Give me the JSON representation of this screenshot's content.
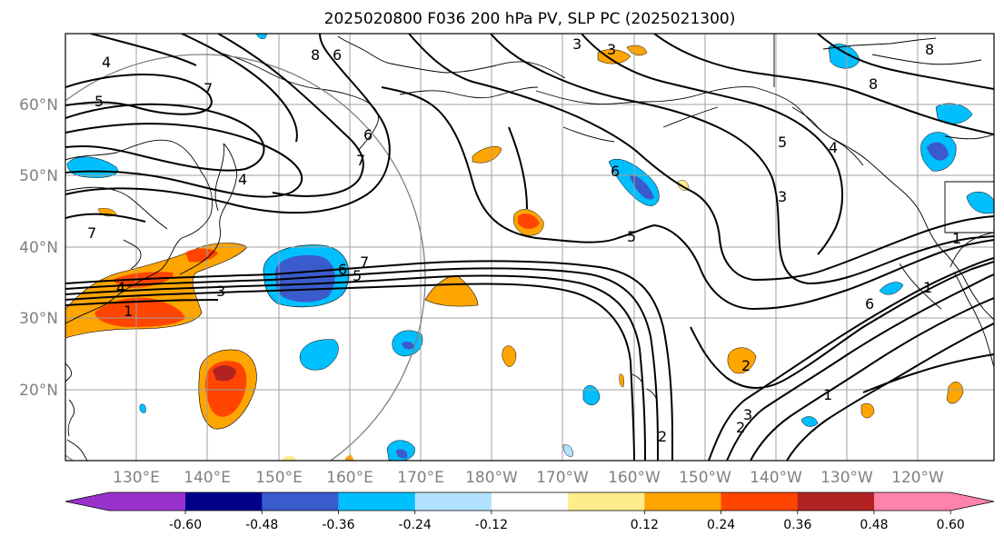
{
  "title": "2025020800 F036 200 hPa PV, SLP PC (2025021300)",
  "map": {
    "lon_labels": [
      "130°E",
      "140°E",
      "150°E",
      "160°E",
      "170°E",
      "180°W",
      "170°W",
      "160°W",
      "150°W",
      "140°W",
      "130°W",
      "120°W"
    ],
    "lat_labels": [
      "60°N",
      "50°N",
      "40°N",
      "30°N",
      "20°N"
    ],
    "colors": {
      "land_border": "#000000",
      "grid": "#a0a0a0",
      "circle": "#808080",
      "contour": "#000000"
    }
  },
  "colorbar": {
    "colors": [
      "#9932cc",
      "#00008b",
      "#3a5bcc",
      "#00bfff",
      "#b0e2ff",
      "#ffffff",
      "#ffec8b",
      "#ffa500",
      "#ff4500",
      "#b22222",
      "#ff82ab"
    ],
    "tick_labels": [
      "-0.60",
      "-0.48",
      "-0.36",
      "-0.24",
      "-0.12",
      "0.12",
      "0.24",
      "0.36",
      "0.48",
      "0.60"
    ]
  },
  "contour_labels": [
    {
      "text": "4"
    },
    {
      "text": "5"
    },
    {
      "text": "7"
    },
    {
      "text": "8"
    },
    {
      "text": "6"
    },
    {
      "text": "3"
    },
    {
      "text": "3"
    },
    {
      "text": "8"
    },
    {
      "text": "5"
    },
    {
      "text": "8"
    },
    {
      "text": "5"
    },
    {
      "text": "4"
    },
    {
      "text": "6"
    },
    {
      "text": "3"
    },
    {
      "text": "6"
    },
    {
      "text": "1"
    },
    {
      "text": "7"
    },
    {
      "text": "4"
    },
    {
      "text": "7"
    },
    {
      "text": "6"
    },
    {
      "text": "5"
    },
    {
      "text": "4"
    },
    {
      "text": "3"
    },
    {
      "text": "1"
    },
    {
      "text": "7"
    },
    {
      "text": "2"
    },
    {
      "text": "2"
    },
    {
      "text": "3"
    },
    {
      "text": "2"
    },
    {
      "text": "1"
    },
    {
      "text": "6"
    },
    {
      "text": "1"
    }
  ]
}
